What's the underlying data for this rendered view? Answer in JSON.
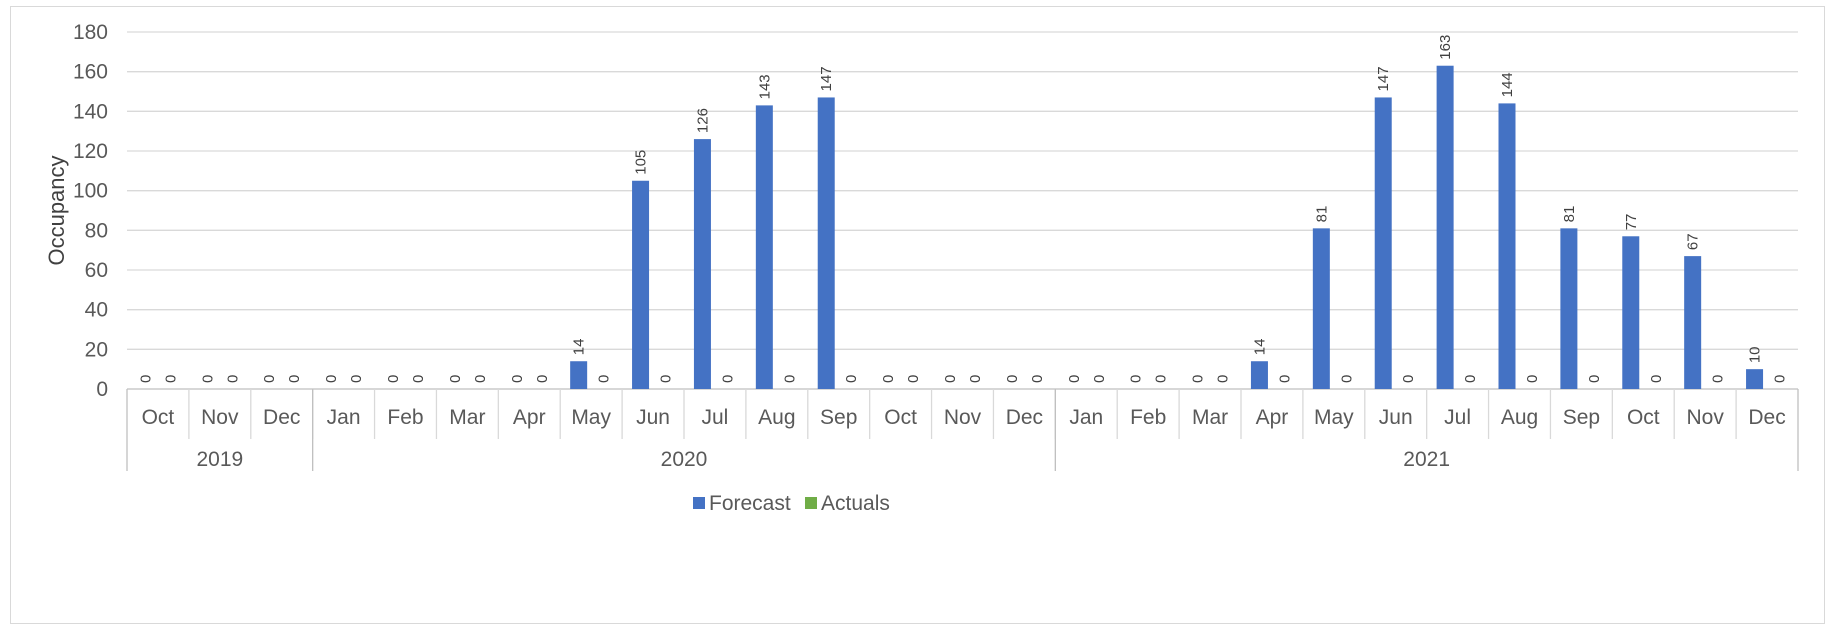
{
  "chart_data": {
    "type": "bar",
    "ylabel": "Occupancy",
    "xlabel": "",
    "title": "",
    "ylim": [
      0,
      180
    ],
    "yticks": [
      0,
      20,
      40,
      60,
      80,
      100,
      120,
      140,
      160,
      180
    ],
    "grid": true,
    "legend_position": "bottom",
    "groups": [
      {
        "label": "2019",
        "count": 3
      },
      {
        "label": "2020",
        "count": 12
      },
      {
        "label": "2021",
        "count": 12
      }
    ],
    "categories": [
      "Oct",
      "Nov",
      "Dec",
      "Jan",
      "Feb",
      "Mar",
      "Apr",
      "May",
      "Jun",
      "Jul",
      "Aug",
      "Sep",
      "Oct",
      "Nov",
      "Dec",
      "Jan",
      "Feb",
      "Mar",
      "Apr",
      "May",
      "Jun",
      "Jul",
      "Aug",
      "Sep",
      "Oct",
      "Nov",
      "Dec"
    ],
    "series": [
      {
        "name": "Forecast",
        "color": "#4472c4",
        "values": [
          0,
          0,
          0,
          0,
          0,
          0,
          0,
          14,
          105,
          126,
          143,
          147,
          0,
          0,
          0,
          0,
          0,
          0,
          14,
          81,
          147,
          163,
          144,
          81,
          77,
          67,
          10
        ]
      },
      {
        "name": "Actuals",
        "color": "#70ad47",
        "values": [
          0,
          0,
          0,
          0,
          0,
          0,
          0,
          0,
          0,
          0,
          0,
          0,
          0,
          0,
          0,
          0,
          0,
          0,
          0,
          0,
          0,
          0,
          0,
          0,
          0,
          0,
          0
        ]
      }
    ]
  }
}
